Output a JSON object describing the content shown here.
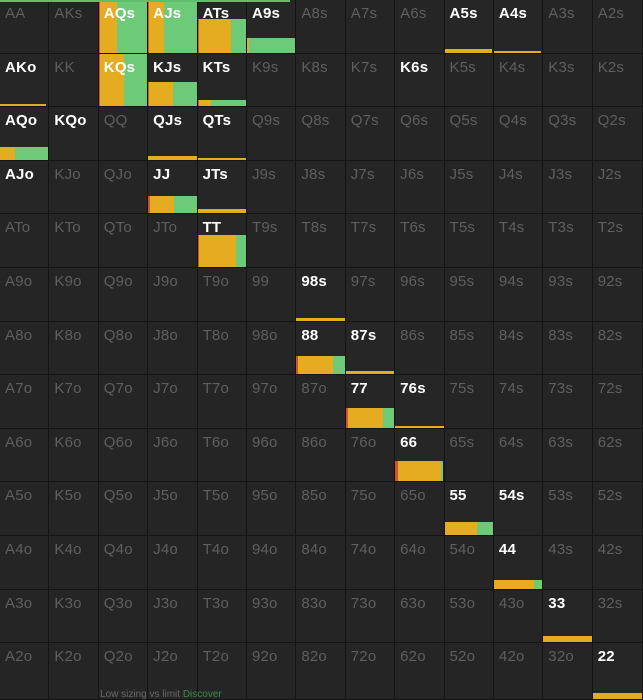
{
  "colors": {
    "raise": "#e5ac22",
    "call": "#6dca78",
    "allin": "#d2522e",
    "active_text": "#ffffff",
    "inactive_text": "#5f5f5f",
    "cell_bg": "#252525"
  },
  "footer": {
    "text": "Low sizing vs limit",
    "link": "Discover"
  },
  "grid": [
    [
      "AA",
      "AKs",
      "AQs",
      "AJs",
      "ATs",
      "A9s",
      "A8s",
      "A7s",
      "A6s",
      "A5s",
      "A4s",
      "A3s",
      "A2s"
    ],
    [
      "AKo",
      "KK",
      "KQs",
      "KJs",
      "KTs",
      "K9s",
      "K8s",
      "K7s",
      "K6s",
      "K5s",
      "K4s",
      "K3s",
      "K2s"
    ],
    [
      "AQo",
      "KQo",
      "QQ",
      "QJs",
      "QTs",
      "Q9s",
      "Q8s",
      "Q7s",
      "Q6s",
      "Q5s",
      "Q4s",
      "Q3s",
      "Q2s"
    ],
    [
      "AJo",
      "KJo",
      "QJo",
      "JJ",
      "JTs",
      "J9s",
      "J8s",
      "J7s",
      "J6s",
      "J5s",
      "J4s",
      "J3s",
      "J2s"
    ],
    [
      "ATo",
      "KTo",
      "QTo",
      "JTo",
      "TT",
      "T9s",
      "T8s",
      "T7s",
      "T6s",
      "T5s",
      "T4s",
      "T3s",
      "T2s"
    ],
    [
      "A9o",
      "K9o",
      "Q9o",
      "J9o",
      "T9o",
      "99",
      "98s",
      "97s",
      "96s",
      "95s",
      "94s",
      "93s",
      "92s"
    ],
    [
      "A8o",
      "K8o",
      "Q8o",
      "J8o",
      "T8o",
      "98o",
      "88",
      "87s",
      "86s",
      "85s",
      "84s",
      "83s",
      "82s"
    ],
    [
      "A7o",
      "K7o",
      "Q7o",
      "J7o",
      "T7o",
      "97o",
      "87o",
      "77",
      "76s",
      "75s",
      "74s",
      "73s",
      "72s"
    ],
    [
      "A6o",
      "K6o",
      "Q6o",
      "J6o",
      "T6o",
      "96o",
      "86o",
      "76o",
      "66",
      "65s",
      "64s",
      "63s",
      "62s"
    ],
    [
      "A5o",
      "K5o",
      "Q5o",
      "J5o",
      "T5o",
      "95o",
      "85o",
      "75o",
      "65o",
      "55",
      "54s",
      "53s",
      "52s"
    ],
    [
      "A4o",
      "K4o",
      "Q4o",
      "J4o",
      "T4o",
      "94o",
      "84o",
      "74o",
      "64o",
      "54o",
      "44",
      "43s",
      "42s"
    ],
    [
      "A3o",
      "K3o",
      "Q3o",
      "J3o",
      "T3o",
      "93o",
      "83o",
      "73o",
      "63o",
      "53o",
      "43o",
      "33",
      "32s"
    ],
    [
      "A2o",
      "K2o",
      "Q2o",
      "J2o",
      "T2o",
      "92o",
      "82o",
      "72o",
      "62o",
      "52o",
      "42o",
      "32o",
      "22"
    ]
  ],
  "active_hands": {
    "AQs": {
      "freq": 1.0,
      "widths": [
        0.02,
        0.35,
        0.63
      ]
    },
    "AJs": {
      "freq": 1.0,
      "widths": [
        0.02,
        0.3,
        0.68
      ]
    },
    "ATs": {
      "freq": 0.65,
      "widths": [
        0.02,
        0.68,
        0.3
      ]
    },
    "A9s": {
      "freq": 0.28,
      "widths": [
        0.0,
        0.05,
        0.95
      ]
    },
    "A5s": {
      "freq": 0.08,
      "widths": [
        0.0,
        1.0,
        0.0
      ]
    },
    "A4s": {
      "freq": 0.03,
      "widths": [
        0.0,
        1.0,
        0.0
      ]
    },
    "AKo": {
      "freq": 0.04,
      "widths": [
        0.0,
        1.0,
        0.0
      ]
    },
    "KQs": {
      "freq": 1.0,
      "widths": [
        0.02,
        0.5,
        0.48
      ]
    },
    "KJs": {
      "freq": 0.45,
      "widths": [
        0.02,
        0.5,
        0.48
      ]
    },
    "KTs": {
      "freq": 0.12,
      "widths": [
        0.02,
        0.25,
        0.73
      ]
    },
    "K6s": {
      "freq": 0.0,
      "widths": [
        0.0,
        0.0,
        0.0
      ]
    },
    "AQo": {
      "freq": 0.25,
      "widths": [
        0.0,
        0.32,
        0.68
      ]
    },
    "KQo": {
      "freq": 0.0,
      "widths": [
        0.0,
        0.0,
        0.0
      ]
    },
    "QJs": {
      "freq": 0.07,
      "widths": [
        0.0,
        1.0,
        0.0
      ]
    },
    "QTs": {
      "freq": 0.03,
      "widths": [
        0.0,
        1.0,
        0.0
      ]
    },
    "AJo": {
      "freq": 0.0,
      "widths": [
        0.0,
        0.0,
        0.0
      ]
    },
    "JJ": {
      "freq": 0.33,
      "widths": [
        0.03,
        0.5,
        0.47
      ]
    },
    "JTs": {
      "freq": 0.08,
      "widths": [
        0.0,
        1.0,
        0.0
      ]
    },
    "TT": {
      "freq": 0.6,
      "widths": [
        0.04,
        0.76,
        0.2
      ]
    },
    "98s": {
      "freq": 0.05,
      "widths": [
        0.0,
        1.0,
        0.0
      ]
    },
    "88": {
      "freq": 0.35,
      "widths": [
        0.03,
        0.73,
        0.24
      ]
    },
    "87s": {
      "freq": 0.05,
      "widths": [
        0.0,
        1.0,
        0.0
      ]
    },
    "77": {
      "freq": 0.38,
      "widths": [
        0.05,
        0.73,
        0.22
      ]
    },
    "76s": {
      "freq": 0.03,
      "widths": [
        0.0,
        1.0,
        0.0
      ]
    },
    "66": {
      "freq": 0.38,
      "widths": [
        0.05,
        0.9,
        0.05
      ]
    },
    "55": {
      "freq": 0.25,
      "widths": [
        0.02,
        0.66,
        0.32
      ]
    },
    "54s": {
      "freq": 0.0,
      "widths": [
        0.0,
        0.0,
        0.0
      ]
    },
    "44": {
      "freq": 0.18,
      "widths": [
        0.0,
        0.82,
        0.18
      ]
    },
    "33": {
      "freq": 0.12,
      "widths": [
        0.0,
        1.0,
        0.0
      ]
    },
    "22": {
      "freq": 0.1,
      "widths": [
        0.0,
        1.0,
        0.0
      ]
    }
  },
  "bar_reach": {
    "A9s": 1.0,
    "A5s": 0.98,
    "A4s": 0.98,
    "AKo": 0.96,
    "KTs": 1.0,
    "AQo": 1.0,
    "QJs": 1.0,
    "QTs": 1.0,
    "JTs": 1.0,
    "98s": 1.0,
    "87s": 1.0,
    "76s": 1.0
  }
}
